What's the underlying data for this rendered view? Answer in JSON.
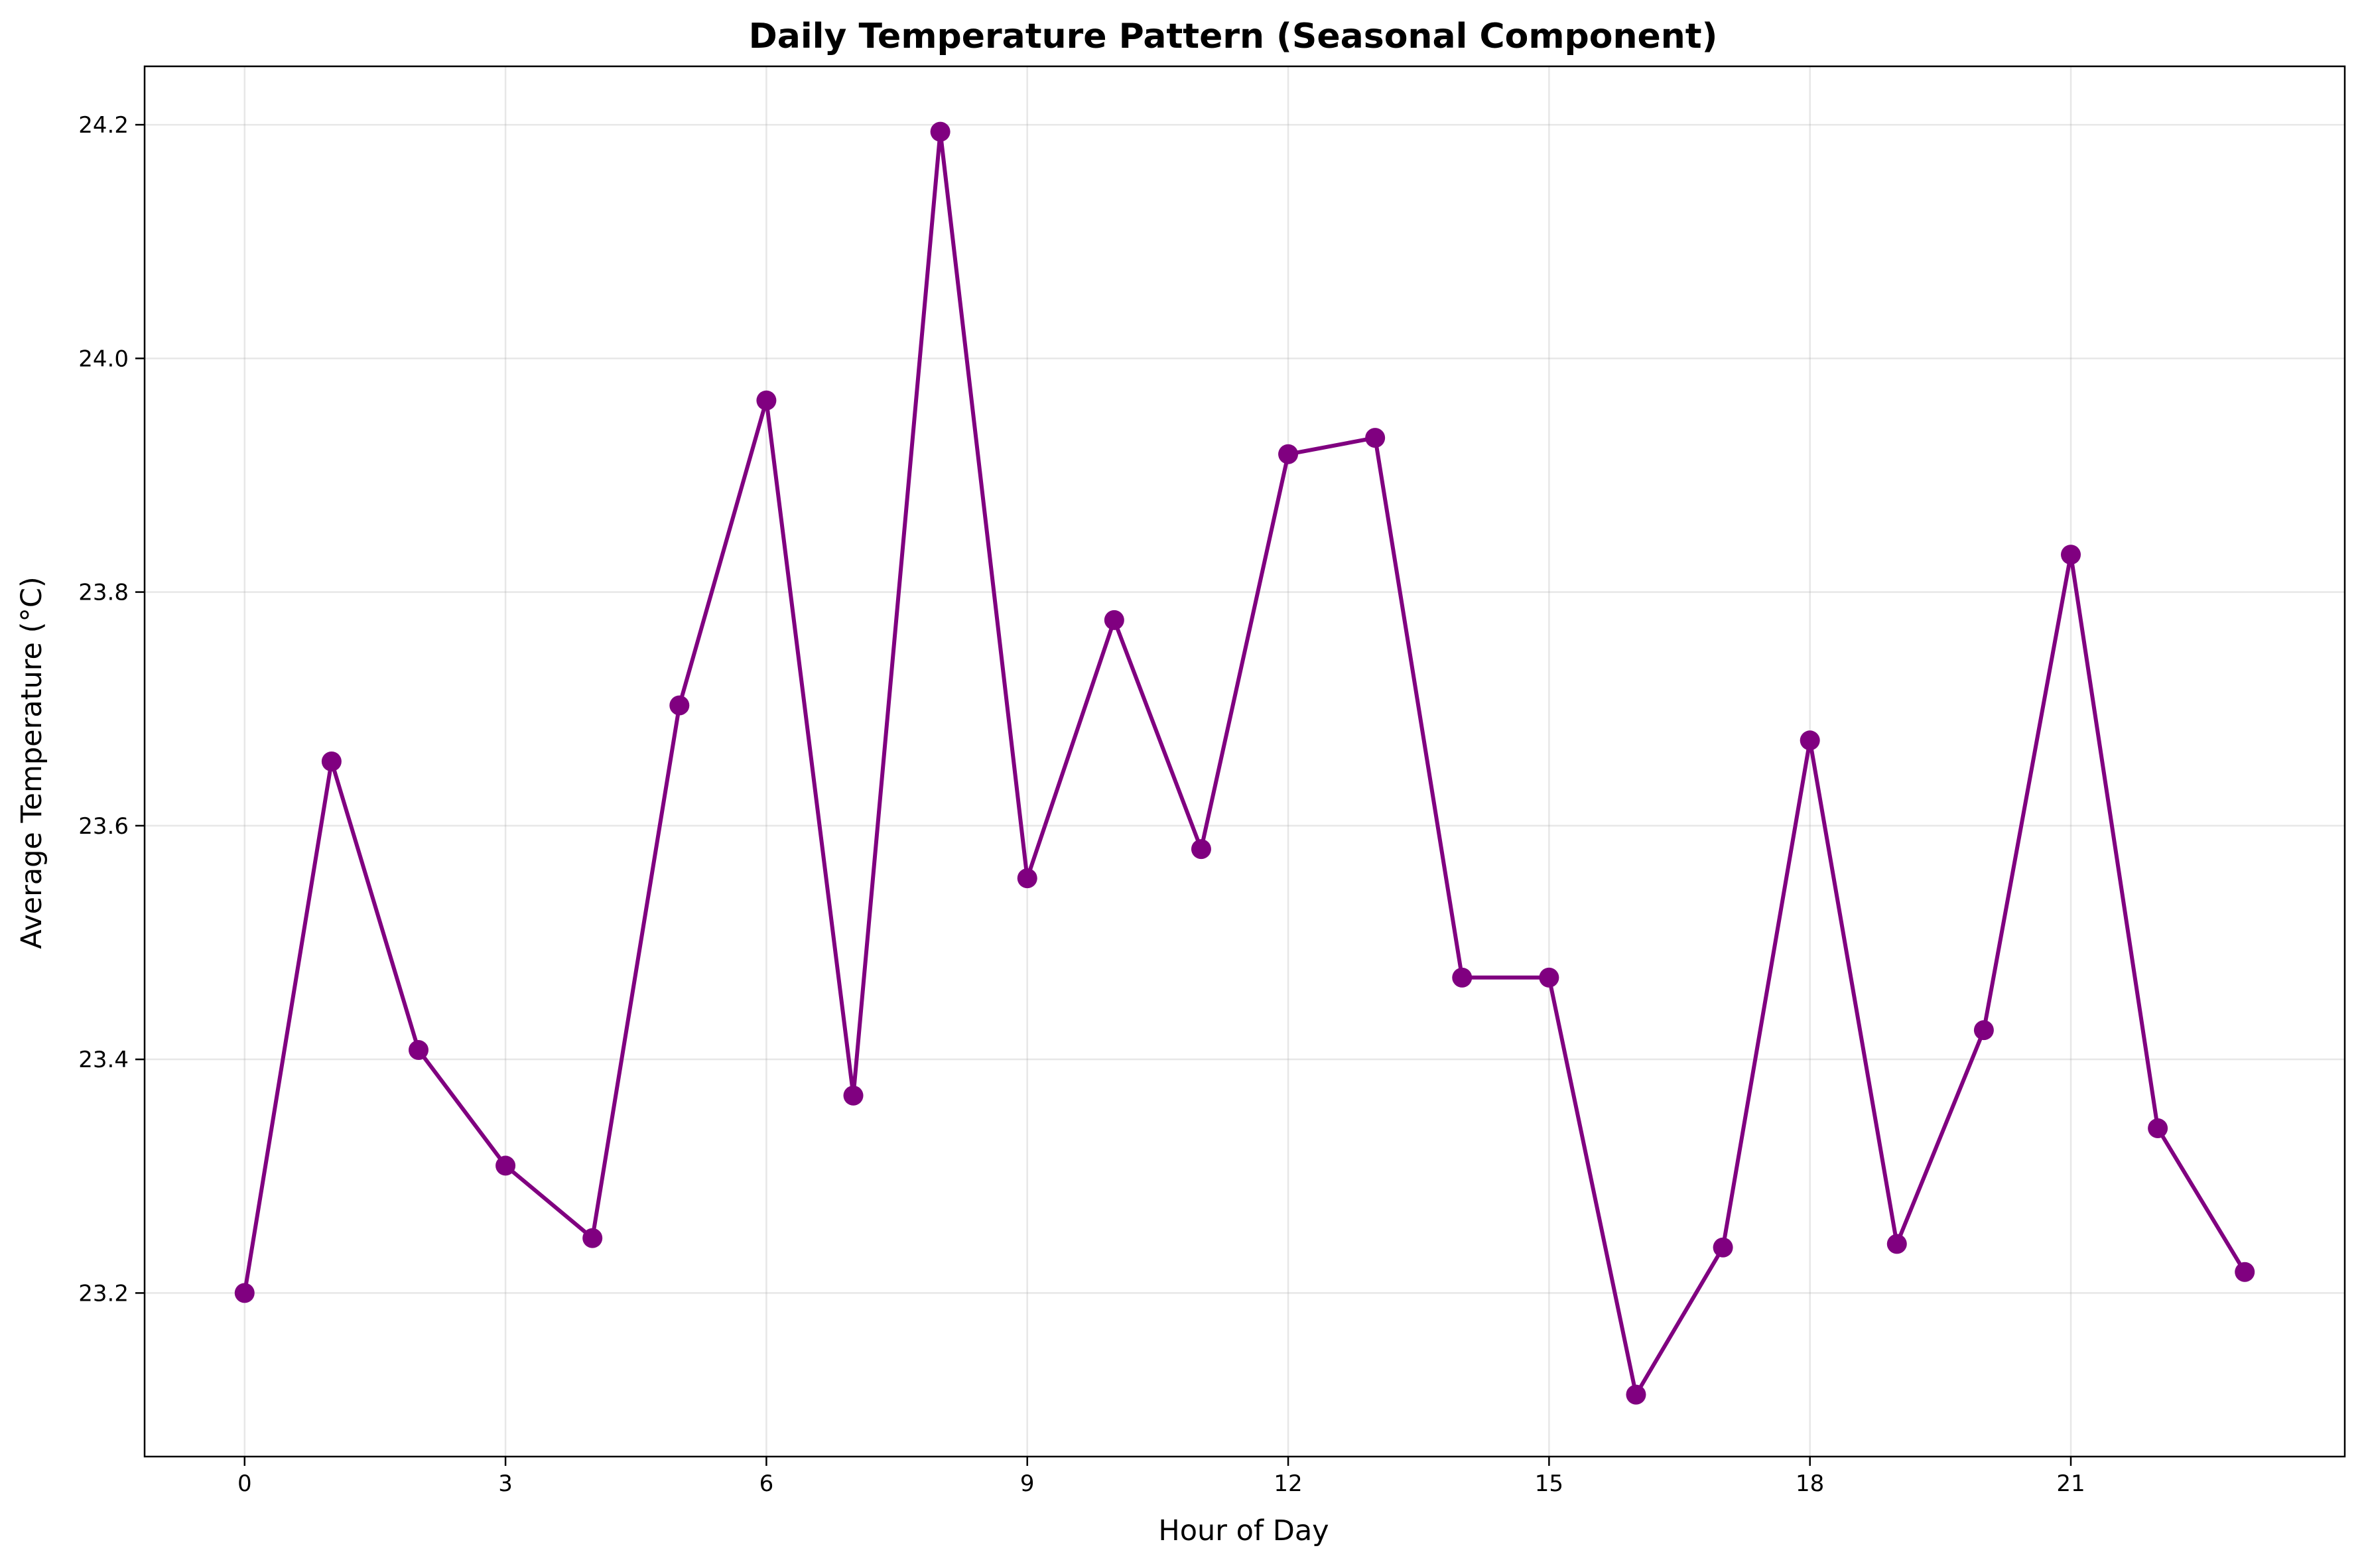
{
  "chart_data": {
    "type": "line",
    "title": "Daily Temperature Pattern (Seasonal Component)",
    "xlabel": "Hour of Day",
    "ylabel": "Average Temperature (°C)",
    "x": [
      0,
      1,
      2,
      3,
      4,
      5,
      6,
      7,
      8,
      9,
      10,
      11,
      12,
      13,
      14,
      15,
      16,
      17,
      18,
      19,
      20,
      21,
      22,
      23
    ],
    "series": [
      {
        "values": [
          23.2,
          23.655,
          23.408,
          23.309,
          23.247,
          23.703,
          23.964,
          23.369,
          24.194,
          23.555,
          23.776,
          23.58,
          23.918,
          23.932,
          23.47,
          23.47,
          23.113,
          23.239,
          23.673,
          23.242,
          23.425,
          23.832,
          23.341,
          23.218
        ],
        "color": "#800080",
        "marker": "circle"
      }
    ],
    "xlim": [
      -1.15,
      24.15
    ],
    "ylim": [
      23.06,
      24.25
    ],
    "xticks": [
      0,
      3,
      6,
      9,
      12,
      15,
      18,
      21
    ],
    "xtick_labels": [
      "0",
      "3",
      "6",
      "9",
      "12",
      "15",
      "18",
      "21"
    ],
    "yticks": [
      23.2,
      23.4,
      23.6,
      23.8,
      24.0,
      24.2
    ],
    "ytick_labels": [
      "23.2",
      "23.4",
      "23.6",
      "23.8",
      "24.0",
      "24.2"
    ],
    "grid": true,
    "legend": "none"
  }
}
